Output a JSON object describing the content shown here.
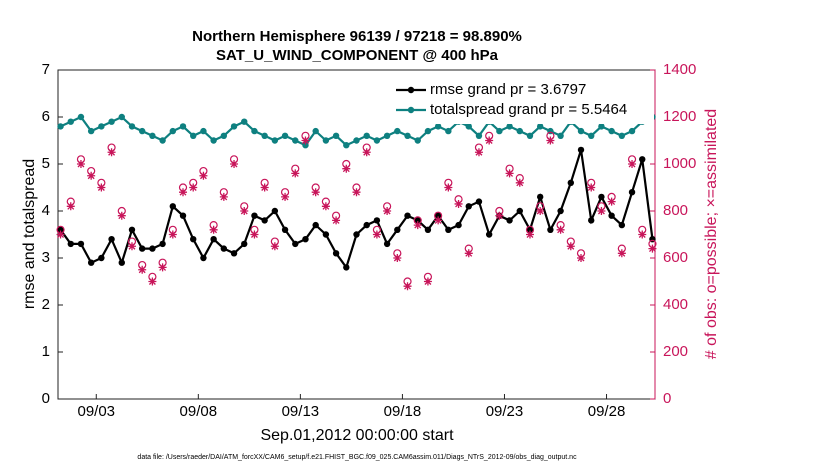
{
  "chart_data": {
    "type": "line",
    "title": "Northern Hemisphere 96139 / 97218 = 98.890%",
    "subtitle": "SAT_U_WIND_COMPONENT @ 400 hPa",
    "xlabel": "Sep.01,2012 00:00:00 start",
    "ylabel": "rmse and totalspread",
    "y2label": "# of obs: o=possible; ×=assimilated",
    "footnote": "data file: /Users/raeder/DAI/ATM_forcXX/CAM6_setup/f.e21.FHIST_BGC.f09_025.CAM6assim.011/Diags_NTrS_2012-09/obs_diag_output.nc",
    "xlim": [
      0.125,
      29.375
    ],
    "xticks": [
      {
        "value": 2,
        "label": "09/03"
      },
      {
        "value": 7,
        "label": "09/08"
      },
      {
        "value": 12,
        "label": "09/13"
      },
      {
        "value": 17,
        "label": "09/18"
      },
      {
        "value": 22,
        "label": "09/23"
      },
      {
        "value": 27,
        "label": "09/28"
      }
    ],
    "ylim": [
      0,
      7
    ],
    "yticks": [
      0,
      1,
      2,
      3,
      4,
      5,
      6,
      7
    ],
    "y2lim": [
      0,
      1400
    ],
    "y2ticks": [
      0,
      200,
      400,
      600,
      800,
      1000,
      1200,
      1400
    ],
    "legend": "upper right",
    "x": [
      0.25,
      0.75,
      1.25,
      1.75,
      2.25,
      2.75,
      3.25,
      3.75,
      4.25,
      4.75,
      5.25,
      5.75,
      6.25,
      6.75,
      7.25,
      7.75,
      8.25,
      8.75,
      9.25,
      9.75,
      10.25,
      10.75,
      11.25,
      11.75,
      12.25,
      12.75,
      13.25,
      13.75,
      14.25,
      14.75,
      15.25,
      15.75,
      16.25,
      16.75,
      17.25,
      17.75,
      18.25,
      18.75,
      19.25,
      19.75,
      20.25,
      20.75,
      21.25,
      21.75,
      22.25,
      22.75,
      23.25,
      23.75,
      24.25,
      24.75,
      25.25,
      25.75,
      26.25,
      26.75,
      27.25,
      27.75,
      28.25,
      28.75,
      29.25
    ],
    "series": [
      {
        "name": "rmse grand pr = 3.6797",
        "color": "#000000",
        "marker": "dot",
        "values": [
          3.6,
          3.3,
          3.3,
          2.9,
          3.0,
          3.4,
          2.9,
          3.6,
          3.2,
          3.2,
          3.3,
          4.1,
          3.9,
          3.4,
          3.0,
          3.4,
          3.2,
          3.1,
          3.3,
          3.9,
          3.8,
          4.0,
          3.6,
          3.3,
          3.4,
          3.7,
          3.5,
          3.1,
          2.8,
          3.5,
          3.7,
          3.8,
          3.3,
          3.6,
          3.9,
          3.8,
          3.6,
          3.9,
          3.6,
          3.7,
          4.1,
          4.2,
          3.5,
          3.9,
          3.8,
          4.0,
          3.6,
          4.3,
          3.6,
          4.0,
          4.6,
          5.3,
          3.8,
          4.3,
          3.9,
          3.7,
          4.4,
          5.1,
          3.4
        ]
      },
      {
        "name": "totalspread grand pr = 5.5464",
        "color": "#0e8080",
        "marker": "dot",
        "values": [
          5.8,
          5.9,
          6.0,
          5.7,
          5.8,
          5.9,
          6.0,
          5.8,
          5.7,
          5.6,
          5.5,
          5.7,
          5.8,
          5.6,
          5.7,
          5.5,
          5.6,
          5.8,
          5.9,
          5.7,
          5.6,
          5.5,
          5.6,
          5.5,
          5.4,
          5.7,
          5.5,
          5.6,
          5.4,
          5.5,
          5.6,
          5.5,
          5.6,
          5.7,
          5.6,
          5.5,
          5.7,
          5.8,
          5.7,
          5.9,
          5.8,
          5.6,
          5.9,
          5.7,
          5.8,
          5.7,
          5.6,
          5.8,
          5.7,
          5.6,
          5.9,
          5.7,
          5.6,
          5.8,
          5.7,
          5.6,
          5.7,
          5.9,
          6.0
        ]
      },
      {
        "color": "#c8155a",
        "marker": "circle",
        "axis": "y2",
        "values": [
          720,
          840,
          1020,
          970,
          920,
          1070,
          800,
          670,
          570,
          520,
          580,
          720,
          900,
          920,
          970,
          740,
          880,
          1020,
          820,
          720,
          920,
          670,
          880,
          980,
          1120,
          900,
          840,
          780,
          1000,
          900,
          1070,
          720,
          820,
          620,
          500,
          760,
          520,
          780,
          920,
          850,
          640,
          1070,
          1120,
          800,
          980,
          940,
          720,
          820,
          1120,
          740,
          670,
          620,
          920,
          820,
          860,
          640,
          1020,
          720,
          660
        ]
      },
      {
        "color": "#c8155a",
        "marker": "star",
        "axis": "y2",
        "values": [
          700,
          820,
          1000,
          950,
          900,
          1050,
          780,
          650,
          550,
          500,
          560,
          700,
          880,
          900,
          950,
          720,
          860,
          1000,
          800,
          700,
          900,
          650,
          860,
          960,
          1100,
          880,
          820,
          760,
          980,
          880,
          1050,
          700,
          800,
          600,
          480,
          740,
          500,
          760,
          900,
          830,
          620,
          1050,
          1100,
          780,
          960,
          920,
          700,
          800,
          1100,
          720,
          650,
          600,
          900,
          800,
          840,
          620,
          1000,
          700,
          640
        ]
      }
    ]
  }
}
